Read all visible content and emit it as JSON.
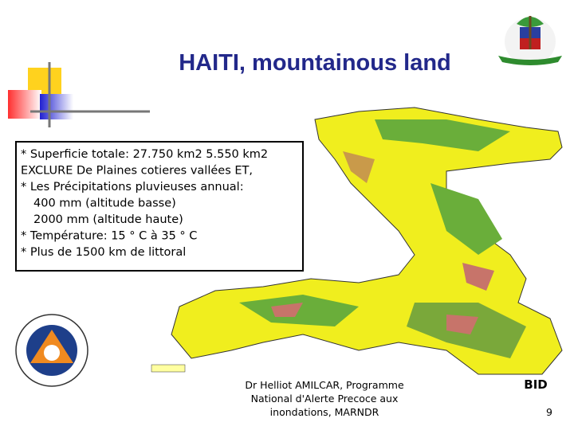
{
  "title": "HAITI, mountainous land",
  "info_box": {
    "lines": [
      "* Superficie totale: 27.750 km2 5.550 km2",
      "EXCLURE De Plaines cotieres vallées ET,",
      "* Les Précipitations pluvieuses annual:",
      "400 mm (altitude basse)",
      "2000 mm (altitude haute)",
      "* Température: 15 ° C à 35 ° C",
      "* Plus de 1500 km de littoral"
    ]
  },
  "footer": {
    "author_lines": [
      "Dr Helliot AMILCAR, Programme",
      "National d'Alerte Precoce aux",
      "inondations, MARNDR"
    ],
    "organization": "BID",
    "page_number": "9"
  }
}
